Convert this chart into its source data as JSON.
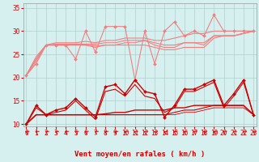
{
  "x": [
    0,
    1,
    2,
    3,
    4,
    5,
    6,
    7,
    8,
    9,
    10,
    11,
    12,
    13,
    14,
    15,
    16,
    17,
    18,
    19,
    20,
    21,
    22,
    23
  ],
  "series": [
    {
      "name": "rafales_main",
      "color": "#f08080",
      "linewidth": 0.8,
      "marker": "D",
      "markersize": 2.0,
      "values": [
        20.5,
        23,
        27,
        27,
        27,
        24,
        30,
        25.5,
        31,
        31,
        31,
        19.5,
        30,
        23,
        30,
        32,
        29,
        30,
        29,
        33.5,
        30,
        30,
        30,
        30
      ]
    },
    {
      "name": "vent_smooth1",
      "color": "#f08080",
      "linewidth": 0.8,
      "marker": null,
      "markersize": 0,
      "values": [
        20.5,
        24.5,
        27,
        27.5,
        27.5,
        27.5,
        27.8,
        27.5,
        28,
        28,
        28.5,
        28.5,
        28.5,
        28,
        28,
        28.5,
        29,
        29.5,
        29.5,
        30,
        30,
        30,
        30,
        30
      ]
    },
    {
      "name": "vent_smooth2",
      "color": "#f08080",
      "linewidth": 0.8,
      "marker": null,
      "markersize": 0,
      "values": [
        20.5,
        24,
        27,
        27.2,
        27.2,
        27.2,
        27.2,
        27.2,
        27.5,
        27.5,
        28,
        28,
        28,
        27.5,
        27,
        27,
        27.5,
        27.5,
        27.5,
        29,
        29,
        29,
        29.5,
        30
      ]
    },
    {
      "name": "vent_flat1",
      "color": "#f08080",
      "linewidth": 0.8,
      "marker": null,
      "markersize": 0,
      "values": [
        20.5,
        24,
        27,
        27,
        27,
        27,
        27,
        26.8,
        27,
        27,
        27.5,
        27.5,
        28,
        27,
        26.5,
        26.5,
        27.5,
        27.5,
        27,
        29,
        29,
        29,
        29.5,
        30
      ]
    },
    {
      "name": "vent_flat2",
      "color": "#f08080",
      "linewidth": 0.8,
      "marker": null,
      "markersize": 0,
      "values": [
        20.5,
        23.5,
        27,
        27,
        27,
        27,
        27,
        26.5,
        27,
        27,
        27,
        27,
        27,
        26.5,
        26,
        26,
        26.5,
        26.5,
        26.5,
        28.5,
        29,
        29,
        29.5,
        30
      ]
    },
    {
      "name": "vent_bas_main",
      "color": "#cc0000",
      "linewidth": 1.0,
      "marker": "D",
      "markersize": 2.0,
      "values": [
        10,
        14,
        12,
        13,
        13.5,
        15.5,
        13.5,
        11.5,
        18,
        18.5,
        16.5,
        19.5,
        17,
        16.5,
        11.5,
        14,
        17.5,
        17.5,
        18.5,
        19.5,
        14,
        16.5,
        19.5,
        12
      ]
    },
    {
      "name": "vent_bas_line1",
      "color": "#cc0000",
      "linewidth": 0.8,
      "marker": null,
      "markersize": 0,
      "values": [
        10,
        13.5,
        12,
        12.5,
        13,
        15,
        13,
        11,
        17,
        17.5,
        16,
        18.5,
        16,
        15.5,
        12.5,
        13.5,
        17,
        17,
        18,
        19,
        13.5,
        16,
        19,
        12
      ]
    },
    {
      "name": "vent_bas_flat1",
      "color": "#cc0000",
      "linewidth": 1.0,
      "marker": null,
      "markersize": 0,
      "values": [
        10,
        12,
        12,
        12,
        12,
        12,
        12,
        12,
        12.2,
        12.5,
        12.5,
        13,
        13,
        13,
        13,
        13.5,
        13.5,
        14,
        14,
        14,
        14,
        14,
        14,
        12
      ]
    },
    {
      "name": "vent_bas_flat2",
      "color": "#cc0000",
      "linewidth": 0.8,
      "marker": null,
      "markersize": 0,
      "values": [
        10,
        12,
        12,
        12,
        12,
        12,
        12,
        12,
        12,
        12,
        12,
        12,
        12,
        12,
        12,
        12.5,
        13,
        13,
        13.5,
        14,
        14,
        14,
        14,
        12
      ]
    },
    {
      "name": "vent_bas_flat3",
      "color": "#cc0000",
      "linewidth": 0.6,
      "marker": null,
      "markersize": 0,
      "values": [
        10,
        12,
        12,
        12,
        12,
        12,
        12,
        12,
        12,
        12,
        12,
        12,
        12,
        12,
        12,
        12,
        12.5,
        12.5,
        13,
        13.5,
        13.5,
        13.5,
        13.5,
        12
      ]
    }
  ],
  "ylim": [
    9.5,
    36
  ],
  "yticks": [
    10,
    15,
    20,
    25,
    30,
    35
  ],
  "xlim": [
    -0.3,
    23.3
  ],
  "xticks": [
    0,
    1,
    2,
    3,
    4,
    5,
    6,
    7,
    8,
    9,
    10,
    11,
    12,
    13,
    14,
    15,
    16,
    17,
    18,
    19,
    20,
    21,
    22,
    23
  ],
  "xlabel": "Vent moyen/en rafales ( km/h )",
  "bgcolor": "#d6f0f0",
  "grid_color": "#b0d0d0",
  "tick_color": "#cc0000",
  "label_fontsize": 6.5,
  "tick_fontsize": 5.5
}
